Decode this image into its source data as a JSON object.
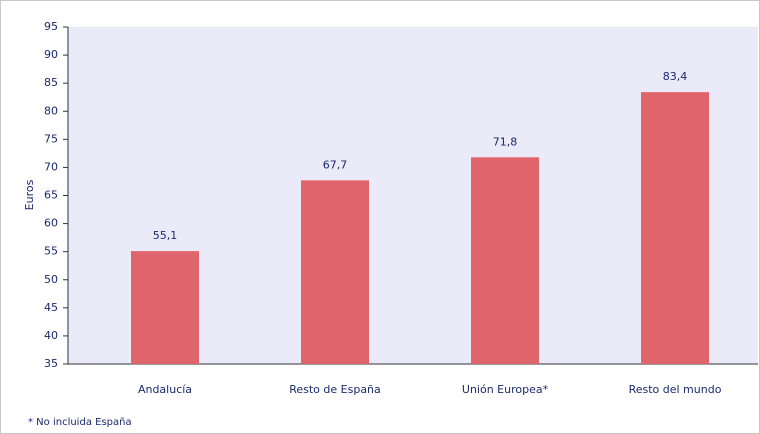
{
  "chart_data": {
    "type": "bar",
    "y_label": "Euros",
    "footnote": "* No incluida España",
    "categories": [
      "Andalucía",
      "Resto de España",
      "Unión Europea*",
      "Resto del mundo"
    ],
    "values": [
      55.1,
      67.7,
      71.8,
      83.4
    ],
    "value_labels": [
      "55,1",
      "67,7",
      "71,8",
      "83,4"
    ],
    "color": "#e0646c",
    "ylim": [
      35,
      95
    ],
    "yticks": [
      35,
      40,
      45,
      50,
      55,
      60,
      65,
      70,
      75,
      80,
      85,
      90,
      95
    ],
    "grid": false
  }
}
